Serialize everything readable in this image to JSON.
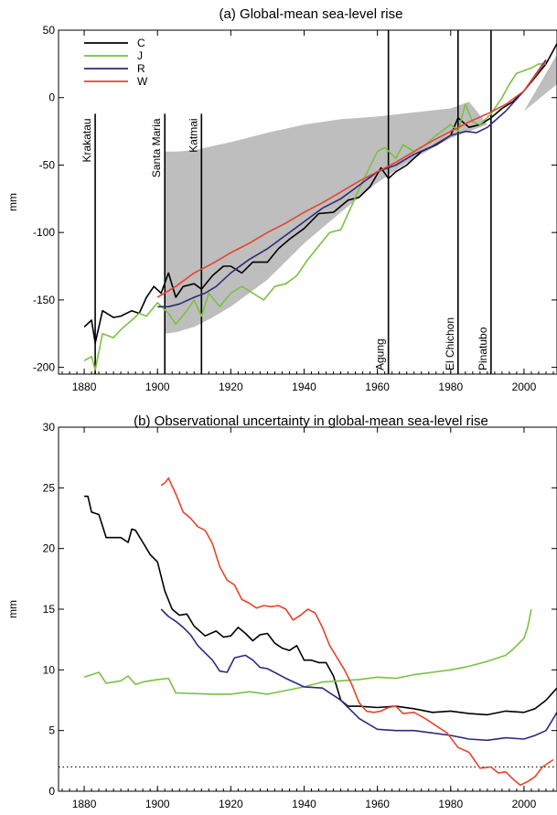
{
  "chart_data": [
    {
      "type": "line",
      "title": "(a) Global-mean sea-level rise",
      "xlabel": "",
      "ylabel": "mm",
      "xlim": [
        1873,
        2009
      ],
      "ylim": [
        -205,
        50
      ],
      "xticks": [
        "1880",
        "1900",
        "1920",
        "1940",
        "1960",
        "1980",
        "2000"
      ],
      "yticks": [
        "50",
        "0",
        "-50",
        "-100",
        "-150",
        "-200"
      ],
      "xtick_values": [
        1880,
        1900,
        1920,
        1940,
        1960,
        1980,
        2000
      ],
      "ytick_values": [
        50,
        0,
        -50,
        -100,
        -150,
        -200
      ],
      "legend_position": "top-left",
      "grid": false,
      "shaded_band": {
        "color": "#bebebe",
        "x": [
          1902,
          1905,
          1910,
          1915,
          1920,
          1930,
          1940,
          1950,
          1960,
          1970,
          1980,
          1985,
          1990,
          2000,
          2009
        ],
        "upper": [
          -40,
          -40,
          -39,
          -36,
          -33,
          -26,
          -20,
          -16,
          -14,
          -11,
          -8,
          -3,
          -20,
          -10,
          32
        ],
        "lower": [
          -175,
          -174,
          -170,
          -163,
          -155,
          -135,
          -108,
          -85,
          -63,
          -45,
          -30,
          -25,
          -20,
          -10,
          10
        ]
      },
      "events": [
        {
          "label": "Krakatau",
          "year": 1883
        },
        {
          "label": "Santa Maria",
          "year": 1902
        },
        {
          "label": "Katmai",
          "year": 1912
        },
        {
          "label": "Agung",
          "year": 1963
        },
        {
          "label": "El Chichon",
          "year": 1982
        },
        {
          "label": "Pinatubo",
          "year": 1991
        }
      ],
      "series": [
        {
          "name": "C",
          "color": "#000000",
          "x": [
            1880,
            1882,
            1883,
            1885,
            1888,
            1890,
            1893,
            1895,
            1897,
            1899,
            1901,
            1903,
            1905,
            1907,
            1910,
            1912,
            1915,
            1918,
            1920,
            1923,
            1926,
            1930,
            1933,
            1936,
            1940,
            1944,
            1948,
            1952,
            1955,
            1958,
            1961,
            1963,
            1965,
            1968,
            1972,
            1976,
            1980,
            1982,
            1985,
            1988,
            1991,
            1994,
            1997,
            2000,
            2003,
            2006,
            2009
          ],
          "y": [
            -170,
            -165,
            -182,
            -158,
            -163,
            -162,
            -158,
            -160,
            -148,
            -140,
            -145,
            -130,
            -148,
            -140,
            -138,
            -142,
            -132,
            -125,
            -125,
            -130,
            -122,
            -122,
            -112,
            -105,
            -97,
            -86,
            -85,
            -76,
            -74,
            -66,
            -52,
            -60,
            -55,
            -50,
            -40,
            -35,
            -28,
            -15,
            -22,
            -20,
            -15,
            -8,
            -3,
            5,
            15,
            25,
            40
          ]
        },
        {
          "name": "J",
          "color": "#7ac142",
          "x": [
            1880,
            1882,
            1883,
            1885,
            1888,
            1890,
            1893,
            1895,
            1897,
            1900,
            1903,
            1905,
            1908,
            1910,
            1912,
            1914,
            1917,
            1920,
            1923,
            1926,
            1929,
            1932,
            1935,
            1938,
            1941,
            1944,
            1947,
            1950,
            1953,
            1956,
            1960,
            1962,
            1965,
            1967,
            1970,
            1973,
            1976,
            1980,
            1982,
            1984,
            1986,
            1988,
            1991,
            1994,
            1996,
            1998,
            2000,
            2002,
            2004,
            2006
          ],
          "y": [
            -195,
            -192,
            -202,
            -175,
            -178,
            -172,
            -165,
            -160,
            -162,
            -152,
            -160,
            -168,
            -158,
            -150,
            -162,
            -145,
            -155,
            -145,
            -140,
            -145,
            -150,
            -140,
            -138,
            -132,
            -120,
            -110,
            -100,
            -98,
            -80,
            -62,
            -40,
            -37,
            -45,
            -35,
            -40,
            -35,
            -28,
            -20,
            -25,
            -5,
            -18,
            -20,
            -12,
            0,
            10,
            18,
            20,
            22,
            25,
            25
          ]
        },
        {
          "name": "R",
          "color": "#2e2a7c",
          "x": [
            1900,
            1903,
            1906,
            1910,
            1913,
            1916,
            1920,
            1925,
            1930,
            1935,
            1940,
            1945,
            1950,
            1955,
            1960,
            1965,
            1970,
            1975,
            1980,
            1984,
            1987,
            1990,
            1995,
            2000,
            2006
          ],
          "y": [
            -155,
            -155,
            -153,
            -148,
            -145,
            -140,
            -130,
            -120,
            -112,
            -102,
            -92,
            -82,
            -75,
            -65,
            -55,
            -50,
            -42,
            -36,
            -28,
            -25,
            -26,
            -22,
            -10,
            5,
            28
          ]
        },
        {
          "name": "W",
          "color": "#e8432c",
          "x": [
            1900,
            1905,
            1910,
            1915,
            1920,
            1925,
            1930,
            1935,
            1940,
            1945,
            1950,
            1955,
            1960,
            1965,
            1970,
            1975,
            1980,
            1985,
            1990,
            1995,
            2000,
            2006
          ],
          "y": [
            -148,
            -140,
            -130,
            -123,
            -115,
            -108,
            -100,
            -93,
            -85,
            -78,
            -70,
            -62,
            -55,
            -48,
            -40,
            -32,
            -25,
            -18,
            -12,
            -5,
            5,
            27
          ]
        }
      ]
    },
    {
      "type": "line",
      "title": "(b) Observational uncertainty in global-mean sea-level rise",
      "xlabel": "",
      "ylabel": "mm",
      "xlim": [
        1873,
        2009
      ],
      "ylim": [
        0,
        30
      ],
      "xticks": [
        "1880",
        "1900",
        "1920",
        "1940",
        "1960",
        "1980",
        "2000"
      ],
      "yticks": [
        "30",
        "25",
        "20",
        "15",
        "10",
        "5",
        "0"
      ],
      "xtick_values": [
        1880,
        1900,
        1920,
        1940,
        1960,
        1980,
        2000
      ],
      "ytick_values": [
        30,
        25,
        20,
        15,
        10,
        5,
        0
      ],
      "grid": false,
      "reference_line": {
        "y": 2,
        "style": "dotted"
      },
      "series": [
        {
          "name": "C",
          "color": "#000000",
          "x": [
            1880,
            1881,
            1882,
            1884,
            1886,
            1888,
            1890,
            1892,
            1893,
            1894,
            1896,
            1898,
            1900,
            1902,
            1904,
            1906,
            1908,
            1910,
            1913,
            1916,
            1918,
            1920,
            1922,
            1924,
            1926,
            1928,
            1930,
            1932,
            1934,
            1936,
            1938,
            1940,
            1942,
            1944,
            1946,
            1948,
            1950,
            1952,
            1955,
            1960,
            1965,
            1970,
            1975,
            1980,
            1985,
            1990,
            1995,
            2000,
            2003,
            2006,
            2009
          ],
          "y": [
            24.3,
            24.3,
            23.0,
            22.8,
            20.9,
            20.9,
            20.9,
            20.5,
            21.6,
            21.5,
            20.5,
            19.5,
            18.9,
            16.5,
            15.0,
            14.5,
            14.6,
            13.6,
            12.8,
            13.2,
            12.7,
            12.8,
            13.5,
            13.0,
            12.4,
            12.9,
            13.0,
            12.2,
            11.8,
            11.6,
            12.0,
            10.8,
            10.8,
            10.6,
            10.6,
            9.5,
            7.5,
            7.0,
            7.0,
            6.9,
            7.0,
            6.8,
            6.5,
            6.6,
            6.4,
            6.3,
            6.6,
            6.5,
            6.8,
            7.5,
            8.5
          ]
        },
        {
          "name": "J",
          "color": "#7ac142",
          "x": [
            1880,
            1884,
            1886,
            1890,
            1892,
            1894,
            1896,
            1900,
            1903,
            1905,
            1915,
            1920,
            1925,
            1930,
            1935,
            1940,
            1945,
            1950,
            1955,
            1960,
            1965,
            1970,
            1975,
            1980,
            1985,
            1990,
            1995,
            1997,
            1999,
            2000,
            2001,
            2002
          ],
          "y": [
            9.4,
            9.8,
            8.9,
            9.1,
            9.5,
            8.8,
            9.0,
            9.2,
            9.3,
            8.1,
            8.0,
            8.0,
            8.2,
            8.0,
            8.3,
            8.6,
            9.0,
            9.1,
            9.2,
            9.4,
            9.3,
            9.6,
            9.8,
            10.0,
            10.3,
            10.7,
            11.2,
            11.7,
            12.3,
            12.6,
            13.5,
            15.0
          ]
        },
        {
          "name": "R",
          "color": "#2e2a7c",
          "x": [
            1901,
            1903,
            1905,
            1907,
            1909,
            1911,
            1913,
            1915,
            1917,
            1919,
            1921,
            1924,
            1926,
            1928,
            1930,
            1935,
            1940,
            1945,
            1950,
            1955,
            1960,
            1965,
            1970,
            1975,
            1980,
            1985,
            1990,
            1995,
            2000,
            2003,
            2006,
            2009
          ],
          "y": [
            15.0,
            14.4,
            14.0,
            13.5,
            12.9,
            12.0,
            11.4,
            10.8,
            9.9,
            9.8,
            11.0,
            11.2,
            10.8,
            10.2,
            10.1,
            9.3,
            8.6,
            8.5,
            7.5,
            6.0,
            5.1,
            5.0,
            5.0,
            4.8,
            4.6,
            4.3,
            4.2,
            4.4,
            4.3,
            4.6,
            5.0,
            6.5
          ]
        },
        {
          "name": "W",
          "color": "#e8432c",
          "x": [
            1901,
            1902,
            1903,
            1905,
            1907,
            1909,
            1911,
            1913,
            1915,
            1917,
            1919,
            1921,
            1923,
            1925,
            1927,
            1929,
            1931,
            1933,
            1935,
            1937,
            1939,
            1941,
            1943,
            1945,
            1947,
            1949,
            1951,
            1953,
            1955,
            1957,
            1959,
            1961,
            1963,
            1965,
            1967,
            1970,
            1973,
            1976,
            1979,
            1982,
            1985,
            1988,
            1991,
            1993,
            1995,
            1997,
            1999,
            2001,
            2003,
            2005,
            2008
          ],
          "y": [
            25.2,
            25.4,
            25.8,
            24.5,
            23.0,
            22.5,
            21.8,
            21.5,
            20.4,
            18.5,
            17.4,
            17.0,
            15.8,
            15.5,
            15.1,
            15.3,
            15.2,
            15.3,
            15.0,
            14.1,
            14.5,
            15.0,
            14.7,
            13.5,
            12.0,
            11.0,
            10.0,
            8.8,
            7.3,
            6.6,
            6.5,
            6.6,
            6.9,
            7.0,
            6.4,
            6.5,
            6.0,
            5.4,
            4.8,
            3.6,
            3.2,
            1.9,
            2.0,
            1.5,
            1.6,
            1.0,
            0.5,
            0.8,
            1.2,
            2.0,
            2.6
          ]
        }
      ]
    }
  ]
}
